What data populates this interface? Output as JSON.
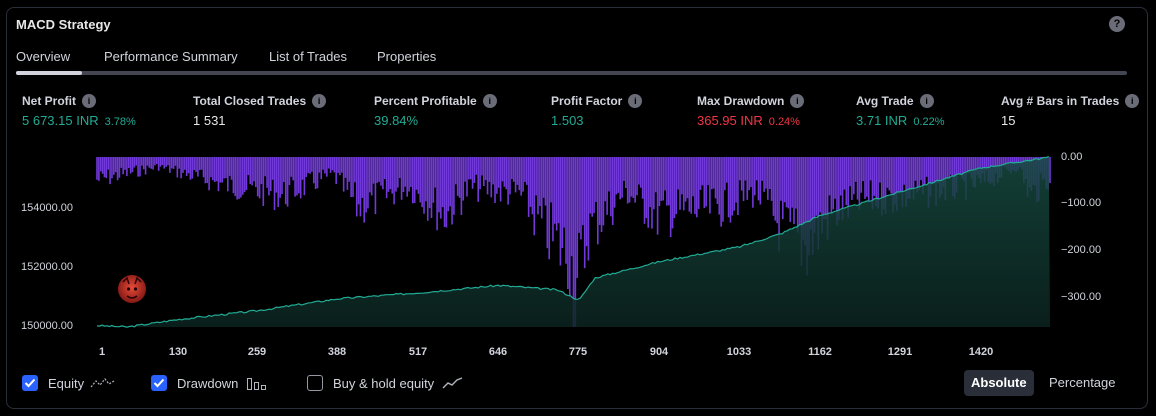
{
  "header": {
    "title": "MACD Strategy",
    "help_label": "?"
  },
  "tabs": [
    {
      "label": "Overview",
      "active": true
    },
    {
      "label": "Performance Summary",
      "active": false
    },
    {
      "label": "List of Trades",
      "active": false
    },
    {
      "label": "Properties",
      "active": false
    }
  ],
  "metrics": [
    {
      "label": "Net Profit",
      "value": "5 673.15 INR",
      "pct": "3.78%",
      "color": "green"
    },
    {
      "label": "Total Closed Trades",
      "value": "1 531",
      "color": "white"
    },
    {
      "label": "Percent Profitable",
      "value": "39.84%",
      "color": "green"
    },
    {
      "label": "Profit Factor",
      "value": "1.503",
      "color": "green"
    },
    {
      "label": "Max Drawdown",
      "value": "365.95 INR",
      "pct": "0.24%",
      "color": "red"
    },
    {
      "label": "Avg Trade",
      "value": "3.71 INR",
      "pct": "0.22%",
      "color": "green"
    },
    {
      "label": "Avg # Bars in Trades",
      "value": "15",
      "color": "white"
    }
  ],
  "chart_data": {
    "type": "area",
    "x_ticks": [
      "1",
      "130",
      "259",
      "388",
      "517",
      "646",
      "775",
      "904",
      "1033",
      "1162",
      "1291",
      "1420"
    ],
    "x_range": [
      1,
      1531
    ],
    "left_axis": {
      "ticks": [
        "154000.00",
        "152000.00",
        "150000.00"
      ],
      "range": [
        149950,
        155670
      ]
    },
    "right_axis": {
      "ticks": [
        "0.00",
        "−100.00",
        "−200.00",
        "−300.00"
      ],
      "range": [
        -365.95,
        0
      ]
    },
    "series": [
      {
        "name": "Equity",
        "color": "#22ab94",
        "x": [
          1,
          50,
          130,
          259,
          388,
          517,
          646,
          740,
          775,
          800,
          904,
          1033,
          1100,
          1162,
          1291,
          1420,
          1531
        ],
        "y": [
          150000,
          149950,
          150200,
          150500,
          150900,
          151100,
          151350,
          151200,
          150850,
          151600,
          152150,
          152650,
          153100,
          153700,
          154500,
          155300,
          155670
        ]
      },
      {
        "name": "Drawdown",
        "color": "#7e3ff2",
        "x": [
          1,
          100,
          200,
          300,
          380,
          420,
          500,
          560,
          600,
          680,
          720,
          760,
          770,
          790,
          850,
          900,
          1000,
          1060,
          1100,
          1140,
          1180,
          1230,
          1290,
          1350,
          1420,
          1480,
          1500,
          1531
        ],
        "y": [
          -60,
          -25,
          -70,
          -100,
          -45,
          -130,
          -75,
          -150,
          -80,
          -95,
          -190,
          -260,
          -360,
          -190,
          -90,
          -150,
          -130,
          -90,
          -185,
          -230,
          -150,
          -110,
          -105,
          -90,
          -70,
          -25,
          -100,
          -55
        ]
      }
    ]
  },
  "legend": [
    {
      "label": "Equity",
      "checked": true
    },
    {
      "label": "Drawdown",
      "checked": true
    },
    {
      "label": "Buy & hold equity",
      "checked": false
    }
  ],
  "mode_toggle": {
    "absolute": "Absolute",
    "percentage": "Percentage",
    "selected": "Absolute"
  }
}
